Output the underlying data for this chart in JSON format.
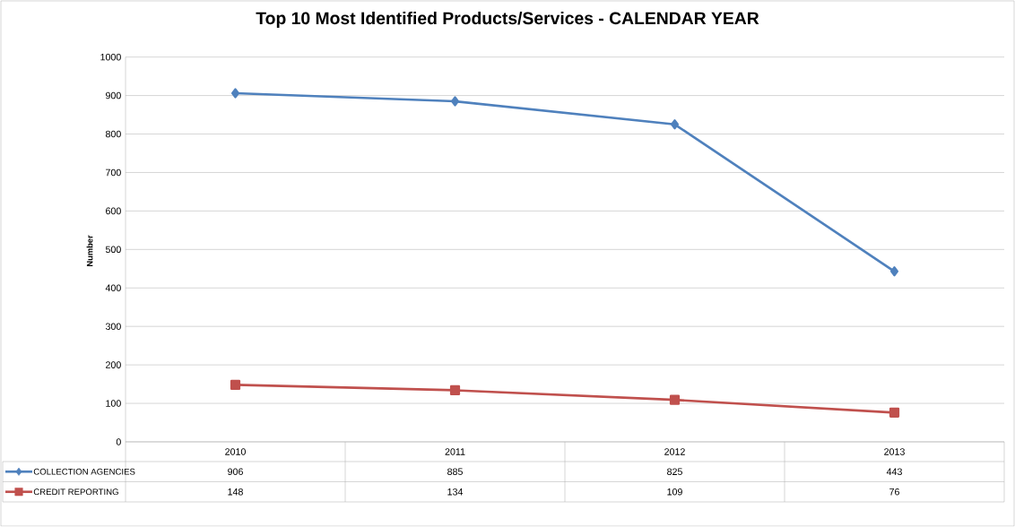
{
  "chart_data": {
    "type": "line",
    "title": "Top 10 Most Identified Products/Services - CALENDAR YEAR",
    "ylabel": "Number",
    "categories": [
      "2010",
      "2011",
      "2012",
      "2013"
    ],
    "series": [
      {
        "name": "COLLECTION AGENCIES",
        "color": "#4f81bd",
        "marker": "diamond",
        "values": [
          906,
          885,
          825,
          443
        ]
      },
      {
        "name": "CREDIT REPORTING",
        "color": "#c0504d",
        "marker": "square",
        "values": [
          148,
          134,
          109,
          76
        ]
      }
    ],
    "ylim": [
      0,
      1000
    ],
    "yticks": [
      0,
      100,
      200,
      300,
      400,
      500,
      600,
      700,
      800,
      900,
      1000
    ],
    "grid": "y",
    "legend": "bottom",
    "data_labels": true,
    "line_style": "solid"
  }
}
